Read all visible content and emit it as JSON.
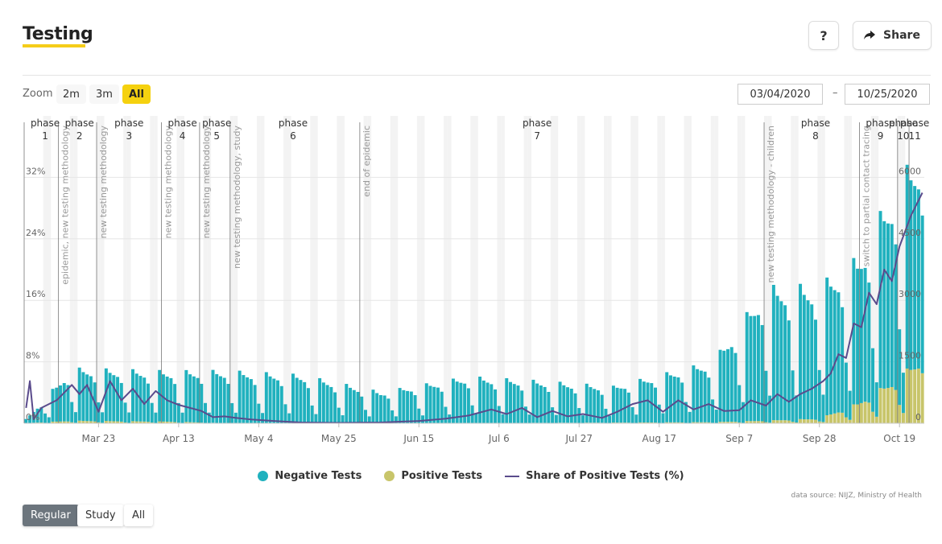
{
  "header": {
    "title": "Testing",
    "help_label": "?",
    "share_label": "Share"
  },
  "zoom": {
    "label": "Zoom",
    "options": [
      "2m",
      "3m",
      "All"
    ],
    "active": "All"
  },
  "range": {
    "from": "03/04/2020",
    "to": "10/25/2020",
    "separator": "–"
  },
  "legend": [
    "Negative Tests",
    "Positive Tests",
    "Share of Positive Tests (%)"
  ],
  "source": "data source: NIJZ, Ministry of Health",
  "tabs": [
    {
      "label": "Regular",
      "active": true
    },
    {
      "label": "Study",
      "active": false
    },
    {
      "label": "All",
      "active": false
    }
  ],
  "colors": {
    "negative": "#20b1be",
    "positive": "#c8c56a",
    "share": "#5a4b8c",
    "accent": "#f5cd19"
  },
  "chart_data": {
    "type": "bar",
    "x_start": "2020-03-04",
    "x_end": "2020-10-25",
    "x_tick_labels": [
      "Mar 23",
      "Apr 13",
      "May 4",
      "May 25",
      "Jun 15",
      "Jul 6",
      "Jul 27",
      "Aug 17",
      "Sep 7",
      "Sep 28",
      "Oct 19"
    ],
    "x_tick_dates": [
      "2020-03-23",
      "2020-04-13",
      "2020-05-04",
      "2020-05-25",
      "2020-06-15",
      "2020-07-06",
      "2020-07-27",
      "2020-08-17",
      "2020-09-07",
      "2020-09-28",
      "2020-10-19"
    ],
    "y_left": {
      "ticks": [
        0,
        8,
        16,
        24,
        32
      ],
      "tick_labels": [
        "0%",
        "8%",
        "16%",
        "24%",
        "32%"
      ],
      "ylim": [
        0,
        40
      ]
    },
    "y_right": {
      "ticks": [
        0,
        1500,
        3000,
        4500,
        6000
      ],
      "tick_labels": [
        "0",
        "1500",
        "3000",
        "4500",
        "6000"
      ],
      "ylim": [
        0,
        7500
      ]
    },
    "weekly_pattern": [
      1.0,
      0.92,
      0.88,
      0.85,
      0.74,
      0.38,
      0.2
    ],
    "weekly_pattern_start_date": "2020-03-04",
    "segments": [
      {
        "from": "2020-03-04",
        "to": "2020-03-16",
        "negative": [
          100,
          1300
        ],
        "positive": [
          5,
          65
        ]
      },
      {
        "from": "2020-03-16",
        "to": "2020-04-10",
        "negative": [
          1300,
          1250
        ],
        "positive": [
          65,
          45
        ]
      },
      {
        "from": "2020-04-10",
        "to": "2020-04-25",
        "negative": [
          1250,
          1300
        ],
        "positive": [
          45,
          5
        ]
      },
      {
        "from": "2020-04-25",
        "to": "2020-05-15",
        "negative": [
          1300,
          1200
        ],
        "positive": [
          5,
          1
        ]
      },
      {
        "from": "2020-05-15",
        "to": "2020-06-05",
        "negative": [
          1200,
          780
        ],
        "positive": [
          1,
          1
        ]
      },
      {
        "from": "2020-06-05",
        "to": "2020-06-28",
        "negative": [
          780,
          1150
        ],
        "positive": [
          1,
          5
        ]
      },
      {
        "from": "2020-06-28",
        "to": "2020-07-15",
        "negative": [
          1150,
          1050
        ],
        "positive": [
          5,
          12
        ]
      },
      {
        "from": "2020-07-15",
        "to": "2020-08-05",
        "negative": [
          1050,
          900
        ],
        "positive": [
          12,
          18
        ]
      },
      {
        "from": "2020-08-05",
        "to": "2020-08-31",
        "negative": [
          900,
          1500
        ],
        "positive": [
          18,
          30
        ]
      },
      {
        "from": "2020-08-31",
        "to": "2020-09-14",
        "negative": [
          1500,
          3300
        ],
        "positive": [
          30,
          70
        ]
      },
      {
        "from": "2020-09-14",
        "to": "2020-09-28",
        "negative": [
          3300,
          3300
        ],
        "positive": [
          70,
          120
        ]
      },
      {
        "from": "2020-09-28",
        "to": "2020-10-08",
        "negative": [
          3300,
          3600
        ],
        "positive": [
          120,
          500
        ]
      },
      {
        "from": "2020-10-08",
        "to": "2020-10-18",
        "negative": [
          3600,
          4800
        ],
        "positive": [
          500,
          1100
        ]
      },
      {
        "from": "2020-10-18",
        "to": "2020-10-25",
        "negative": [
          4800,
          5200
        ],
        "positive": [
          1100,
          1650
        ]
      }
    ],
    "share_points": [
      [
        "2020-03-04",
        2
      ],
      [
        "2020-03-05",
        5.5
      ],
      [
        "2020-03-06",
        0.5
      ],
      [
        "2020-03-08",
        2
      ],
      [
        "2020-03-12",
        3
      ],
      [
        "2020-03-16",
        5
      ],
      [
        "2020-03-18",
        3.8
      ],
      [
        "2020-03-20",
        5
      ],
      [
        "2020-03-23",
        1.5
      ],
      [
        "2020-03-26",
        5.5
      ],
      [
        "2020-03-29",
        3
      ],
      [
        "2020-04-01",
        4.5
      ],
      [
        "2020-04-04",
        2.5
      ],
      [
        "2020-04-07",
        4.2
      ],
      [
        "2020-04-10",
        3
      ],
      [
        "2020-04-13",
        2.4
      ],
      [
        "2020-04-16",
        2
      ],
      [
        "2020-04-19",
        1.6
      ],
      [
        "2020-04-22",
        0.8
      ],
      [
        "2020-04-25",
        0.9
      ],
      [
        "2020-04-28",
        0.7
      ],
      [
        "2020-05-02",
        0.5
      ],
      [
        "2020-05-08",
        0.3
      ],
      [
        "2020-05-15",
        0.1
      ],
      [
        "2020-05-25",
        0.05
      ],
      [
        "2020-06-05",
        0.1
      ],
      [
        "2020-06-15",
        0.3
      ],
      [
        "2020-06-22",
        0.6
      ],
      [
        "2020-06-28",
        1.0
      ],
      [
        "2020-07-04",
        1.8
      ],
      [
        "2020-07-08",
        1.2
      ],
      [
        "2020-07-12",
        2.0
      ],
      [
        "2020-07-16",
        0.8
      ],
      [
        "2020-07-20",
        1.6
      ],
      [
        "2020-07-24",
        0.9
      ],
      [
        "2020-07-28",
        1.2
      ],
      [
        "2020-08-02",
        0.7
      ],
      [
        "2020-08-06",
        1.5
      ],
      [
        "2020-08-10",
        2.5
      ],
      [
        "2020-08-14",
        3.0
      ],
      [
        "2020-08-18",
        1.5
      ],
      [
        "2020-08-22",
        3.0
      ],
      [
        "2020-08-26",
        1.8
      ],
      [
        "2020-08-30",
        2.5
      ],
      [
        "2020-09-03",
        1.6
      ],
      [
        "2020-09-07",
        1.7
      ],
      [
        "2020-09-10",
        3.0
      ],
      [
        "2020-09-14",
        2.3
      ],
      [
        "2020-09-17",
        3.8
      ],
      [
        "2020-09-20",
        2.8
      ],
      [
        "2020-09-23",
        3.8
      ],
      [
        "2020-09-26",
        4.5
      ],
      [
        "2020-09-29",
        5.5
      ],
      [
        "2020-10-01",
        6.5
      ],
      [
        "2020-10-03",
        9.0
      ],
      [
        "2020-10-05",
        8.5
      ],
      [
        "2020-10-07",
        13.0
      ],
      [
        "2020-10-09",
        12.5
      ],
      [
        "2020-10-11",
        17.0
      ],
      [
        "2020-10-13",
        15.5
      ],
      [
        "2020-10-15",
        20.0
      ],
      [
        "2020-10-17",
        18.5
      ],
      [
        "2020-10-19",
        23.0
      ],
      [
        "2020-10-22",
        27.0
      ],
      [
        "2020-10-25",
        30.0
      ]
    ],
    "phases": [
      {
        "date": "2020-03-04",
        "label_top": "phase",
        "label_num": "1"
      },
      {
        "date": "2020-03-13",
        "label_top": "phase",
        "label_num": "2",
        "annotation": "epidemic, new testing methodology"
      },
      {
        "date": "2020-03-23",
        "label_top": "phase",
        "label_num": "3",
        "annotation": "new testing methodology"
      },
      {
        "date": "2020-04-09",
        "label_top": "phase",
        "label_num": "4",
        "annotation": "new testing methodology"
      },
      {
        "date": "2020-04-19",
        "label_top": "phase",
        "label_num": "5",
        "annotation": "new testing methodology"
      },
      {
        "date": "2020-04-27",
        "label_top": "phase",
        "label_num": "6",
        "annotation": "new testing methodology, study"
      },
      {
        "date": "2020-05-31",
        "label_top": "phase",
        "label_num": "7",
        "annotation": "end of epidemic"
      },
      {
        "date": "2020-09-14",
        "label_top": "phase",
        "label_num": "8",
        "annotation": "new testing methodology - children"
      },
      {
        "date": "2020-10-09",
        "label_top": "phase",
        "label_num": "9",
        "annotation": "switch to partial contact tracing"
      },
      {
        "date": "2020-10-19",
        "label_top": "phase",
        "label_num": "10"
      },
      {
        "date": "2020-10-22",
        "label_top": "phase",
        "label_num": "11"
      }
    ],
    "phase_label_positions": [
      {
        "top": "phase",
        "num": "1",
        "date": "2020-03-09"
      },
      {
        "top": "phase",
        "num": "2",
        "date": "2020-03-18"
      },
      {
        "top": "phase",
        "num": "3",
        "date": "2020-03-31"
      },
      {
        "top": "phase",
        "num": "4",
        "date": "2020-04-14"
      },
      {
        "top": "phase",
        "num": "5",
        "date": "2020-04-23"
      },
      {
        "top": "phase",
        "num": "6",
        "date": "2020-05-13"
      },
      {
        "top": "phase",
        "num": "7",
        "date": "2020-07-16"
      },
      {
        "top": "phase",
        "num": "8",
        "date": "2020-09-27"
      },
      {
        "top": "phase",
        "num": "9",
        "date": "2020-10-14"
      },
      {
        "top": "phase",
        "num": "10",
        "date": "2020-10-20"
      },
      {
        "top": "phase",
        "num": "11",
        "date": "2020-10-23"
      }
    ]
  }
}
